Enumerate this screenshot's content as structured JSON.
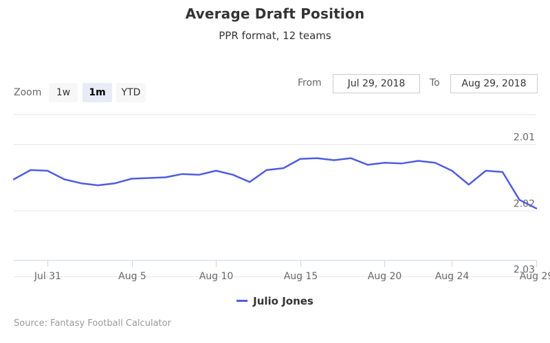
{
  "chart_data": {
    "type": "line",
    "title": "Average Draft Position",
    "subtitle": "PPR format, 12 teams",
    "x": [
      "2018-07-29",
      "2018-07-30",
      "2018-07-31",
      "2018-08-01",
      "2018-08-02",
      "2018-08-03",
      "2018-08-04",
      "2018-08-05",
      "2018-08-06",
      "2018-08-07",
      "2018-08-08",
      "2018-08-09",
      "2018-08-10",
      "2018-08-11",
      "2018-08-12",
      "2018-08-13",
      "2018-08-14",
      "2018-08-15",
      "2018-08-16",
      "2018-08-17",
      "2018-08-18",
      "2018-08-19",
      "2018-08-20",
      "2018-08-21",
      "2018-08-22",
      "2018-08-23",
      "2018-08-24",
      "2018-08-25",
      "2018-08-26",
      "2018-08-27",
      "2018-08-28",
      "2018-08-29"
    ],
    "series": [
      {
        "name": "Julio Jones",
        "color": "#4f5be0",
        "values": [
          2.0153,
          2.0139,
          2.014,
          2.0153,
          2.0159,
          2.0162,
          2.0159,
          2.0152,
          2.0151,
          2.015,
          2.0145,
          2.0146,
          2.014,
          2.0146,
          2.0157,
          2.0139,
          2.0136,
          2.0122,
          2.0121,
          2.0124,
          2.0121,
          2.0131,
          2.0128,
          2.0129,
          2.0125,
          2.0128,
          2.014,
          2.0161,
          2.014,
          2.0142,
          2.0184,
          2.0197
        ]
      }
    ],
    "x_ticks": [
      "Jul 31",
      "Aug 5",
      "Aug 10",
      "Aug 15",
      "Aug 20",
      "Aug 24",
      "Aug 29"
    ],
    "x_tick_dates": [
      "2018-07-31",
      "2018-08-05",
      "2018-08-10",
      "2018-08-15",
      "2018-08-20",
      "2018-08-24",
      "2018-08-29"
    ],
    "y_ticks": [
      "2.01",
      "2.02",
      "2.03"
    ],
    "y_tick_values": [
      2.01,
      2.02,
      2.03
    ],
    "y_reversed": true,
    "y_axis_side": "right",
    "ylim": [
      2.0055,
      2.0275
    ],
    "grid": true,
    "legend_position": "bottom-center",
    "xlabel": "",
    "ylabel": ""
  },
  "range_selector": {
    "zoom_label": "Zoom",
    "buttons": [
      {
        "label": "1w",
        "active": false
      },
      {
        "label": "1m",
        "active": true
      },
      {
        "label": "YTD",
        "active": false
      }
    ],
    "from_label": "From",
    "from_value": "Jul 29, 2018",
    "to_label": "To",
    "to_value": "Aug 29, 2018"
  },
  "credits": "Source: Fantasy Football Calculator",
  "colors": {
    "series": "#4f5be0",
    "grid": "#e6e6e6",
    "axis": "#ccd6eb",
    "text": "#333333",
    "muted": "#666666"
  }
}
